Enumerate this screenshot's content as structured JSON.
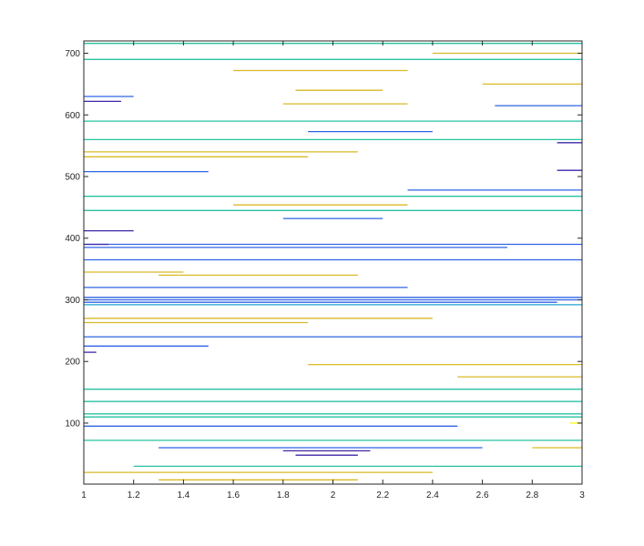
{
  "chart_data": {
    "type": "line",
    "title": "",
    "xlabel": "",
    "ylabel": "",
    "xlim": [
      1,
      3
    ],
    "ylim": [
      1,
      720
    ],
    "x_ticks": [
      1,
      1.2,
      1.4,
      1.6,
      1.8,
      2,
      2.2,
      2.4,
      2.6,
      2.8,
      3
    ],
    "x_tick_labels": [
      "1",
      "1.2",
      "1.4",
      "1.6",
      "1.8",
      "2",
      "2.2",
      "2.4",
      "2.6",
      "2.8",
      "3"
    ],
    "y_ticks": [
      100,
      200,
      300,
      400,
      500,
      600,
      700
    ],
    "y_tick_labels": [
      "100",
      "200",
      "300",
      "400",
      "500",
      "600",
      "700"
    ],
    "grid": false,
    "legend": "none",
    "colormap": [
      "#3e26a8",
      "#2f63e6",
      "#20a4cf",
      "#27c2a0",
      "#b7bd29",
      "#d9ba26",
      "#f9fb0e"
    ],
    "series": [
      {
        "color": "#2f63e6",
        "values": [
          [
            1,
            300
          ],
          [
            3,
            300
          ]
        ]
      },
      {
        "color": "#2f63e6",
        "values": [
          [
            1,
            304
          ],
          [
            3,
            304
          ]
        ]
      },
      {
        "color": "#2f63e6",
        "values": [
          [
            1,
            296
          ],
          [
            2.9,
            296
          ]
        ]
      },
      {
        "color": "#20a4cf",
        "values": [
          [
            1,
            292
          ],
          [
            3,
            292
          ]
        ]
      },
      {
        "color": "#d9ba26",
        "values": [
          [
            1,
            270
          ],
          [
            2.4,
            270
          ]
        ]
      },
      {
        "color": "#d9ba26",
        "values": [
          [
            1,
            263
          ],
          [
            1.9,
            263
          ]
        ]
      },
      {
        "color": "#2f63e6",
        "values": [
          [
            1,
            320
          ],
          [
            2.3,
            320
          ]
        ]
      },
      {
        "color": "#2f63e6",
        "values": [
          [
            1,
            385
          ],
          [
            2.7,
            385
          ]
        ]
      },
      {
        "color": "#2f63e6",
        "values": [
          [
            1,
            390
          ],
          [
            3,
            390
          ]
        ]
      },
      {
        "color": "#d9ba26",
        "values": [
          [
            1,
            540
          ],
          [
            2.1,
            540
          ]
        ]
      },
      {
        "color": "#d9ba26",
        "values": [
          [
            1,
            532
          ],
          [
            1.9,
            532
          ]
        ]
      },
      {
        "color": "#27c2a0",
        "values": [
          [
            1,
            560
          ],
          [
            3,
            560
          ]
        ]
      },
      {
        "color": "#27c2a0",
        "values": [
          [
            1,
            468
          ],
          [
            3,
            468
          ]
        ]
      },
      {
        "color": "#d9ba26",
        "values": [
          [
            1.6,
            454
          ],
          [
            2.3,
            454
          ]
        ]
      },
      {
        "color": "#2f63e6",
        "values": [
          [
            2.3,
            478
          ],
          [
            3,
            478
          ]
        ]
      },
      {
        "color": "#d9ba26",
        "values": [
          [
            1.8,
            618
          ],
          [
            2.3,
            618
          ]
        ]
      },
      {
        "color": "#d9ba26",
        "values": [
          [
            1.85,
            640
          ],
          [
            2.2,
            640
          ]
        ]
      },
      {
        "color": "#27c2a0",
        "values": [
          [
            1,
            690
          ],
          [
            3,
            690
          ]
        ]
      },
      {
        "color": "#27c2a0",
        "values": [
          [
            1,
            716
          ],
          [
            3,
            716
          ]
        ]
      },
      {
        "color": "#d9ba26",
        "values": [
          [
            2.4,
            700
          ],
          [
            3,
            700
          ]
        ]
      },
      {
        "color": "#d9ba26",
        "values": [
          [
            1.6,
            672
          ],
          [
            2.3,
            672
          ]
        ]
      },
      {
        "color": "#2f63e6",
        "values": [
          [
            2.65,
            615
          ],
          [
            3,
            615
          ]
        ]
      },
      {
        "color": "#2f63e6",
        "values": [
          [
            1,
            630
          ],
          [
            1.2,
            630
          ]
        ]
      },
      {
        "color": "#3e26a8",
        "values": [
          [
            1,
            622
          ],
          [
            1.15,
            622
          ]
        ]
      },
      {
        "color": "#27c2a0",
        "values": [
          [
            1,
            155
          ],
          [
            3,
            155
          ]
        ]
      },
      {
        "color": "#27c2a0",
        "values": [
          [
            1,
            135
          ],
          [
            3,
            135
          ]
        ]
      },
      {
        "color": "#d9ba26",
        "values": [
          [
            1.9,
            195
          ],
          [
            3,
            195
          ]
        ]
      },
      {
        "color": "#d9ba26",
        "values": [
          [
            2.5,
            175
          ],
          [
            3,
            175
          ]
        ]
      },
      {
        "color": "#2f63e6",
        "values": [
          [
            1,
            240
          ],
          [
            3,
            240
          ]
        ]
      },
      {
        "color": "#2f63e6",
        "values": [
          [
            1,
            225
          ],
          [
            1.5,
            225
          ]
        ]
      },
      {
        "color": "#27c2a0",
        "values": [
          [
            1,
            115
          ],
          [
            3,
            115
          ]
        ]
      },
      {
        "color": "#27c2a0",
        "values": [
          [
            1,
            110
          ],
          [
            3,
            110
          ]
        ]
      },
      {
        "color": "#2f63e6",
        "values": [
          [
            1,
            95
          ],
          [
            2.5,
            95
          ]
        ]
      },
      {
        "color": "#2f63e6",
        "values": [
          [
            1.3,
            60
          ],
          [
            2.6,
            60
          ]
        ]
      },
      {
        "color": "#3e26a8",
        "values": [
          [
            1.8,
            55
          ],
          [
            2.15,
            55
          ]
        ]
      },
      {
        "color": "#3e26a8",
        "values": [
          [
            1.85,
            48
          ],
          [
            2.1,
            48
          ]
        ]
      },
      {
        "color": "#27c2a0",
        "values": [
          [
            1,
            72
          ],
          [
            3,
            72
          ]
        ]
      },
      {
        "color": "#d9ba26",
        "values": [
          [
            1,
            20
          ],
          [
            2.4,
            20
          ]
        ]
      },
      {
        "color": "#d9ba26",
        "values": [
          [
            1.3,
            8
          ],
          [
            2.1,
            8
          ]
        ]
      },
      {
        "color": "#27c2a0",
        "values": [
          [
            1.2,
            30
          ],
          [
            3,
            30
          ]
        ]
      },
      {
        "color": "#d9ba26",
        "values": [
          [
            2.8,
            60
          ],
          [
            3,
            60
          ]
        ]
      },
      {
        "color": "#f9fb0e",
        "values": [
          [
            2.95,
            100
          ],
          [
            3,
            100
          ]
        ]
      },
      {
        "color": "#3e26a8",
        "values": [
          [
            2.9,
            555
          ],
          [
            3,
            555
          ]
        ]
      },
      {
        "color": "#3e26a8",
        "values": [
          [
            2.9,
            510
          ],
          [
            3,
            510
          ]
        ]
      },
      {
        "color": "#2f63e6",
        "values": [
          [
            1,
            508
          ],
          [
            1.5,
            508
          ]
        ]
      },
      {
        "color": "#3e26a8",
        "values": [
          [
            1,
            412
          ],
          [
            1.2,
            412
          ]
        ]
      },
      {
        "color": "#3e26a8",
        "values": [
          [
            1,
            390
          ],
          [
            1.1,
            390
          ]
        ]
      },
      {
        "color": "#3e26a8",
        "values": [
          [
            1,
            215
          ],
          [
            1.05,
            215
          ]
        ]
      },
      {
        "color": "#d9ba26",
        "values": [
          [
            1,
            345
          ],
          [
            1.4,
            345
          ]
        ]
      },
      {
        "color": "#d9ba26",
        "values": [
          [
            1.3,
            340
          ],
          [
            2.1,
            340
          ]
        ]
      },
      {
        "color": "#2f63e6",
        "values": [
          [
            1.8,
            432
          ],
          [
            2.2,
            432
          ]
        ]
      },
      {
        "color": "#27c2a0",
        "values": [
          [
            1,
            445
          ],
          [
            3,
            445
          ]
        ]
      },
      {
        "color": "#2f63e6",
        "values": [
          [
            1,
            365
          ],
          [
            3,
            365
          ]
        ]
      },
      {
        "color": "#27c2a0",
        "values": [
          [
            1,
            590
          ],
          [
            3,
            590
          ]
        ]
      },
      {
        "color": "#2f63e6",
        "values": [
          [
            1.9,
            573
          ],
          [
            2.4,
            573
          ]
        ]
      },
      {
        "color": "#d9ba26",
        "values": [
          [
            2.6,
            650
          ],
          [
            3,
            650
          ]
        ]
      }
    ]
  }
}
